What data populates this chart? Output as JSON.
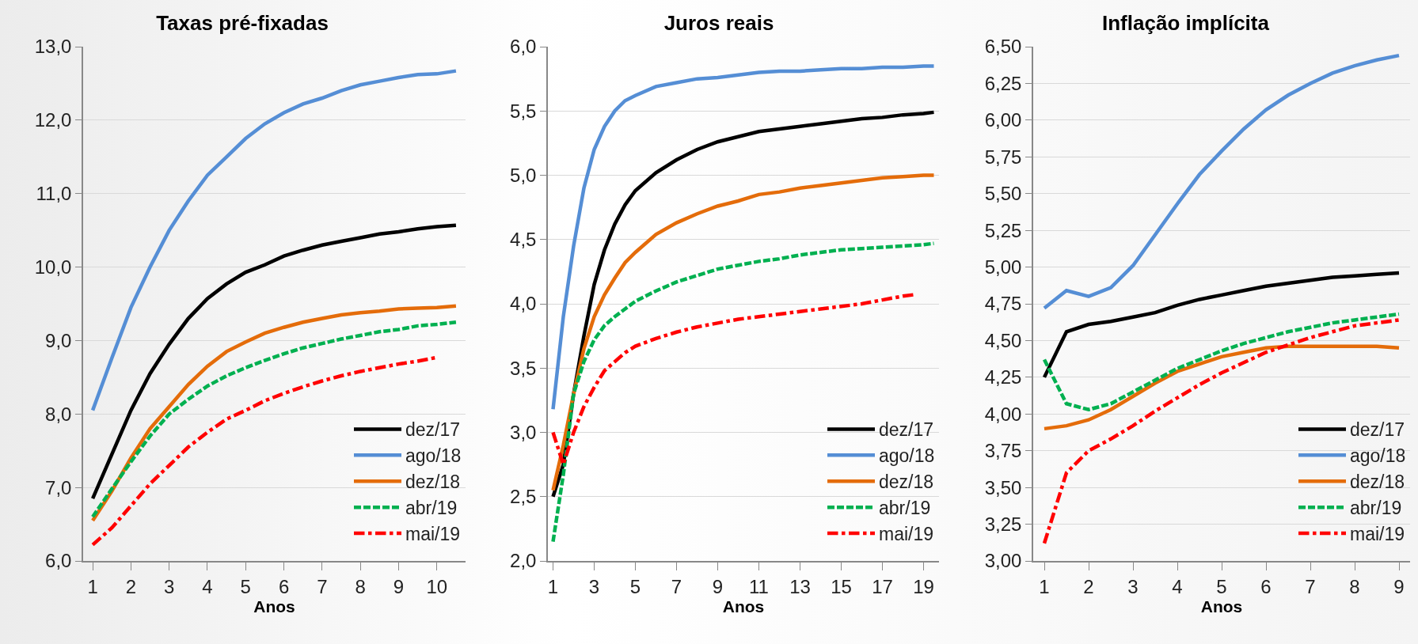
{
  "chart_data": [
    {
      "type": "line",
      "title": "Taxas pré-fixadas",
      "xlabel": "Anos",
      "x": [
        1,
        1.5,
        2,
        2.5,
        3,
        3.5,
        4,
        4.5,
        5,
        5.5,
        6,
        6.5,
        7,
        7.5,
        8,
        8.5,
        9,
        9.5,
        10,
        10.5
      ],
      "xlim": [
        0.75,
        10.75
      ],
      "xticks": [
        1,
        2,
        3,
        4,
        5,
        6,
        7,
        8,
        9,
        10
      ],
      "ylim": [
        6,
        13
      ],
      "yticks": [
        {
          "value": 6,
          "label": "6,0"
        },
        {
          "value": 7,
          "label": "7,0"
        },
        {
          "value": 8,
          "label": "8,0"
        },
        {
          "value": 9,
          "label": "9,0"
        },
        {
          "value": 10,
          "label": "10,0"
        },
        {
          "value": 11,
          "label": "11,0"
        },
        {
          "value": 12,
          "label": "12,0"
        },
        {
          "value": 13,
          "label": "13,0"
        }
      ],
      "grid": "y",
      "legend": "bottom right",
      "marker": "none",
      "series": [
        {
          "name": "dez/17",
          "color": "#000000",
          "line_style": "solid",
          "values": [
            6.85,
            7.45,
            8.05,
            8.55,
            8.95,
            9.3,
            9.57,
            9.77,
            9.93,
            10.03,
            10.15,
            10.23,
            10.3,
            10.35,
            10.4,
            10.45,
            10.48,
            10.52,
            10.55,
            10.57
          ]
        },
        {
          "name": "ago/18",
          "color": "#558ed5",
          "line_style": "solid",
          "values": [
            8.05,
            8.76,
            9.45,
            10.0,
            10.5,
            10.9,
            11.25,
            11.5,
            11.75,
            11.95,
            12.1,
            12.22,
            12.3,
            12.4,
            12.48,
            12.53,
            12.58,
            12.62,
            12.63,
            12.67
          ]
        },
        {
          "name": "dez/18",
          "color": "#e46c0a",
          "line_style": "solid",
          "values": [
            6.55,
            6.95,
            7.4,
            7.8,
            8.1,
            8.4,
            8.65,
            8.85,
            8.98,
            9.1,
            9.18,
            9.25,
            9.3,
            9.35,
            9.38,
            9.4,
            9.43,
            9.44,
            9.45,
            9.47
          ]
        },
        {
          "name": "abr/19",
          "color": "#00b050",
          "line_style": "dashed",
          "values": [
            6.6,
            6.98,
            7.35,
            7.7,
            8.0,
            8.2,
            8.38,
            8.52,
            8.63,
            8.73,
            8.82,
            8.9,
            8.96,
            9.02,
            9.07,
            9.12,
            9.15,
            9.2,
            9.22,
            9.25
          ]
        },
        {
          "name": "mai/19",
          "color": "#ff0000",
          "line_style": "dashdot",
          "values": [
            6.22,
            6.45,
            6.75,
            7.05,
            7.3,
            7.55,
            7.75,
            7.93,
            8.05,
            8.18,
            8.28,
            8.37,
            8.45,
            8.52,
            8.58,
            8.63,
            8.68,
            8.72,
            8.77,
            null
          ]
        }
      ]
    },
    {
      "type": "line",
      "title": "Juros reais",
      "xlabel": "Anos",
      "x": [
        1,
        1.5,
        2,
        2.5,
        3,
        3.5,
        4,
        4.5,
        5,
        6,
        7,
        8,
        9,
        10,
        11,
        12,
        13,
        14,
        15,
        16,
        17,
        18,
        19,
        19.5
      ],
      "xlim": [
        0.75,
        19.75
      ],
      "xticks": [
        1,
        3,
        5,
        7,
        9,
        11,
        13,
        15,
        17,
        19
      ],
      "ylim": [
        2,
        6
      ],
      "yticks": [
        {
          "value": 2,
          "label": "2,0"
        },
        {
          "value": 2.5,
          "label": "2,5"
        },
        {
          "value": 3,
          "label": "3,0"
        },
        {
          "value": 3.5,
          "label": "3,5"
        },
        {
          "value": 4,
          "label": "4,0"
        },
        {
          "value": 4.5,
          "label": "4,5"
        },
        {
          "value": 5,
          "label": "5,0"
        },
        {
          "value": 5.5,
          "label": "5,5"
        },
        {
          "value": 6,
          "label": "6,0"
        }
      ],
      "grid": "y",
      "legend": "bottom right",
      "marker": "none",
      "series": [
        {
          "name": "dez/17",
          "color": "#000000",
          "line_style": "solid",
          "values": [
            2.5,
            2.75,
            3.3,
            3.75,
            4.15,
            4.42,
            4.62,
            4.77,
            4.88,
            5.02,
            5.12,
            5.2,
            5.26,
            5.3,
            5.34,
            5.36,
            5.38,
            5.4,
            5.42,
            5.44,
            5.45,
            5.47,
            5.48,
            5.49
          ]
        },
        {
          "name": "ago/18",
          "color": "#558ed5",
          "line_style": "solid",
          "values": [
            3.18,
            3.9,
            4.45,
            4.9,
            5.2,
            5.38,
            5.5,
            5.58,
            5.62,
            5.69,
            5.72,
            5.75,
            5.76,
            5.78,
            5.8,
            5.81,
            5.81,
            5.82,
            5.83,
            5.83,
            5.84,
            5.84,
            5.85,
            5.85
          ]
        },
        {
          "name": "dez/18",
          "color": "#e46c0a",
          "line_style": "solid",
          "values": [
            2.55,
            2.9,
            3.3,
            3.65,
            3.9,
            4.07,
            4.2,
            4.32,
            4.4,
            4.54,
            4.63,
            4.7,
            4.76,
            4.8,
            4.85,
            4.87,
            4.9,
            4.92,
            4.94,
            4.96,
            4.98,
            4.99,
            5.0,
            5.0
          ]
        },
        {
          "name": "abr/19",
          "color": "#00b050",
          "line_style": "dashed",
          "values": [
            2.15,
            2.67,
            3.3,
            3.55,
            3.72,
            3.83,
            3.9,
            3.96,
            4.02,
            4.1,
            4.17,
            4.22,
            4.27,
            4.3,
            4.33,
            4.35,
            4.38,
            4.4,
            4.42,
            4.43,
            4.44,
            4.45,
            4.46,
            4.47
          ]
        },
        {
          "name": "mai/19",
          "color": "#ff0000",
          "line_style": "dashdot",
          "x": [
            1,
            1.5,
            2,
            2.5,
            3,
            3.5,
            4,
            4.5,
            5,
            6,
            7,
            8,
            9,
            10,
            11,
            12,
            13,
            14,
            15,
            16,
            17,
            18,
            18.5
          ],
          "values": [
            3.0,
            2.75,
            3.0,
            3.2,
            3.35,
            3.48,
            3.55,
            3.62,
            3.67,
            3.73,
            3.78,
            3.82,
            3.85,
            3.88,
            3.9,
            3.92,
            3.94,
            3.96,
            3.98,
            4.0,
            4.03,
            4.06,
            4.07
          ]
        }
      ]
    },
    {
      "type": "line",
      "title": "Inflação implícita",
      "xlabel": "Anos",
      "x": [
        1,
        1.5,
        2,
        2.5,
        3,
        3.5,
        4,
        4.5,
        5,
        5.5,
        6,
        6.5,
        7,
        7.5,
        8,
        8.5,
        9
      ],
      "xlim": [
        0.75,
        9.25
      ],
      "xticks": [
        1,
        2,
        3,
        4,
        5,
        6,
        7,
        8,
        9
      ],
      "ylim": [
        3,
        6.5
      ],
      "yticks": [
        {
          "value": 3,
          "label": "3,00"
        },
        {
          "value": 3.25,
          "label": "3,25"
        },
        {
          "value": 3.5,
          "label": "3,50"
        },
        {
          "value": 3.75,
          "label": "3,75"
        },
        {
          "value": 4,
          "label": "4,00"
        },
        {
          "value": 4.25,
          "label": "4,25"
        },
        {
          "value": 4.5,
          "label": "4,50"
        },
        {
          "value": 4.75,
          "label": "4,75"
        },
        {
          "value": 5,
          "label": "5,00"
        },
        {
          "value": 5.25,
          "label": "5,25"
        },
        {
          "value": 5.5,
          "label": "5,50"
        },
        {
          "value": 5.75,
          "label": "5,75"
        },
        {
          "value": 6,
          "label": "6,00"
        },
        {
          "value": 6.25,
          "label": "6,25"
        },
        {
          "value": 6.5,
          "label": "6,50"
        }
      ],
      "grid": "y",
      "legend": "bottom right",
      "marker": "none",
      "series": [
        {
          "name": "dez/17",
          "color": "#000000",
          "line_style": "solid",
          "values": [
            4.25,
            4.56,
            4.61,
            4.63,
            4.66,
            4.69,
            4.74,
            4.78,
            4.81,
            4.84,
            4.87,
            4.89,
            4.91,
            4.93,
            4.94,
            4.95,
            4.96
          ]
        },
        {
          "name": "ago/18",
          "color": "#558ed5",
          "line_style": "solid",
          "values": [
            4.72,
            4.84,
            4.8,
            4.86,
            5.01,
            5.22,
            5.43,
            5.63,
            5.79,
            5.94,
            6.07,
            6.17,
            6.25,
            6.32,
            6.37,
            6.41,
            6.44
          ]
        },
        {
          "name": "dez/18",
          "color": "#e46c0a",
          "line_style": "solid",
          "values": [
            3.9,
            3.92,
            3.96,
            4.03,
            4.12,
            4.21,
            4.29,
            4.34,
            4.39,
            4.42,
            4.45,
            4.46,
            4.46,
            4.46,
            4.46,
            4.46,
            4.45
          ]
        },
        {
          "name": "abr/19",
          "color": "#00b050",
          "line_style": "dashed",
          "values": [
            4.37,
            4.07,
            4.03,
            4.07,
            4.15,
            4.23,
            4.31,
            4.37,
            4.43,
            4.48,
            4.52,
            4.56,
            4.59,
            4.62,
            4.64,
            4.66,
            4.68
          ]
        },
        {
          "name": "mai/19",
          "color": "#ff0000",
          "line_style": "dashdot",
          "values": [
            3.12,
            3.6,
            3.75,
            3.83,
            3.92,
            4.02,
            4.11,
            4.2,
            4.28,
            4.35,
            4.42,
            4.47,
            4.52,
            4.56,
            4.6,
            4.62,
            4.64
          ]
        }
      ]
    }
  ]
}
